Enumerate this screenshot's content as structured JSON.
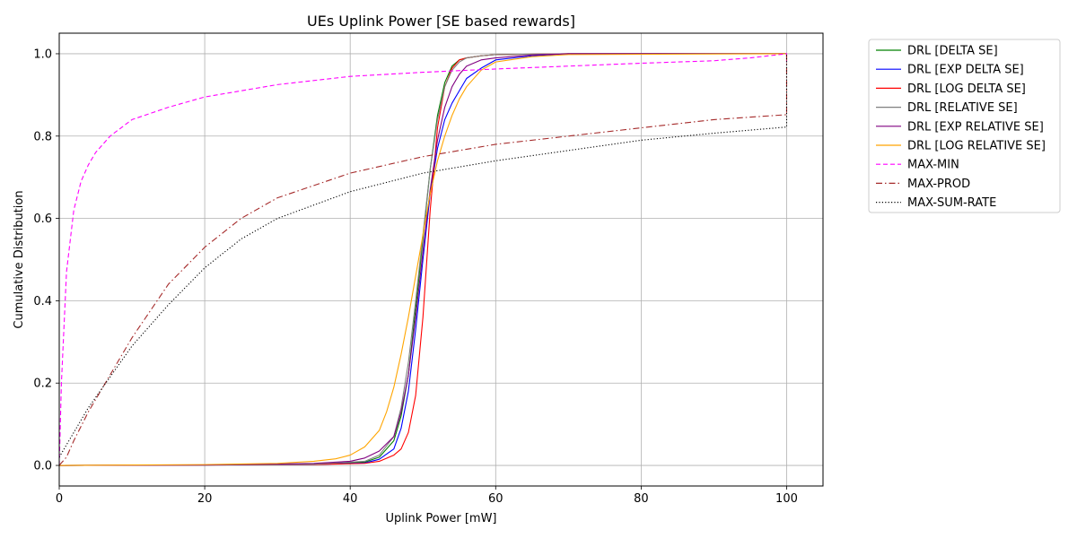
{
  "chart_data": {
    "type": "line",
    "title": "UEs Uplink Power [SE based rewards]",
    "xlabel": "Uplink Power [mW]",
    "ylabel": "Cumulative Distribution",
    "xlim": [
      0,
      105
    ],
    "ylim": [
      -0.05,
      1.05
    ],
    "xticks": [
      0,
      20,
      40,
      60,
      80,
      100
    ],
    "yticks": [
      0.0,
      0.2,
      0.4,
      0.6,
      0.8,
      1.0
    ],
    "xtick_labels": [
      "0",
      "20",
      "40",
      "60",
      "80",
      "100"
    ],
    "ytick_labels": [
      "0.0",
      "0.2",
      "0.4",
      "0.6",
      "0.8",
      "1.0"
    ],
    "grid": true,
    "legend_position": "outside-top-right",
    "series": [
      {
        "name": "DRL [DELTA SE]",
        "color": "#008000",
        "dash": "solid",
        "x": [
          0,
          20,
          35,
          42,
          44,
          46,
          47,
          48,
          49,
          50,
          51,
          52,
          53,
          54,
          55,
          56,
          58,
          60,
          70,
          100
        ],
        "y": [
          0,
          0.001,
          0.003,
          0.008,
          0.02,
          0.06,
          0.12,
          0.22,
          0.38,
          0.55,
          0.72,
          0.85,
          0.93,
          0.97,
          0.985,
          0.99,
          0.995,
          0.998,
          1.0,
          1.0
        ]
      },
      {
        "name": "DRL [EXP DELTA SE]",
        "color": "#0000ff",
        "dash": "solid",
        "x": [
          0,
          20,
          35,
          42,
          44,
          46,
          47,
          48,
          49,
          50,
          51,
          52,
          53,
          54,
          55,
          56,
          58,
          60,
          65,
          70,
          100
        ],
        "y": [
          0,
          0.001,
          0.002,
          0.006,
          0.015,
          0.04,
          0.09,
          0.18,
          0.33,
          0.5,
          0.66,
          0.77,
          0.84,
          0.88,
          0.91,
          0.94,
          0.965,
          0.985,
          0.995,
          1.0,
          1.0
        ]
      },
      {
        "name": "DRL [LOG DELTA SE]",
        "color": "#ff0000",
        "dash": "solid",
        "x": [
          0,
          20,
          35,
          42,
          44,
          46,
          47,
          48,
          49,
          50,
          51,
          52,
          53,
          54,
          55,
          56,
          58,
          60,
          70,
          100
        ],
        "y": [
          0,
          0.001,
          0.002,
          0.005,
          0.01,
          0.025,
          0.04,
          0.08,
          0.17,
          0.36,
          0.62,
          0.82,
          0.92,
          0.965,
          0.985,
          0.99,
          0.995,
          0.998,
          1.0,
          1.0
        ]
      },
      {
        "name": "DRL [RELATIVE SE]",
        "color": "#808080",
        "dash": "solid",
        "x": [
          0,
          20,
          35,
          42,
          44,
          46,
          47,
          48,
          49,
          50,
          51,
          52,
          53,
          54,
          55,
          56,
          58,
          60,
          70,
          100
        ],
        "y": [
          0,
          0.001,
          0.003,
          0.01,
          0.025,
          0.07,
          0.14,
          0.25,
          0.4,
          0.56,
          0.72,
          0.84,
          0.92,
          0.96,
          0.98,
          0.99,
          0.995,
          0.998,
          1.0,
          1.0
        ]
      },
      {
        "name": "DRL [EXP RELATIVE SE]",
        "color": "#800080",
        "dash": "solid",
        "x": [
          0,
          20,
          35,
          40,
          42,
          44,
          46,
          47,
          48,
          49,
          50,
          51,
          52,
          53,
          54,
          55,
          56,
          58,
          60,
          65,
          70,
          100
        ],
        "y": [
          0,
          0.001,
          0.005,
          0.01,
          0.018,
          0.035,
          0.07,
          0.13,
          0.22,
          0.36,
          0.52,
          0.67,
          0.79,
          0.87,
          0.92,
          0.95,
          0.97,
          0.985,
          0.99,
          0.997,
          1.0,
          1.0
        ]
      },
      {
        "name": "DRL [LOG RELATIVE SE]",
        "color": "#ffa500",
        "dash": "solid",
        "x": [
          0,
          20,
          30,
          35,
          38,
          40,
          42,
          44,
          45,
          46,
          47,
          48,
          49,
          50,
          51,
          52,
          53,
          54,
          55,
          56,
          58,
          60,
          65,
          70,
          100
        ],
        "y": [
          0,
          0.002,
          0.005,
          0.01,
          0.016,
          0.025,
          0.045,
          0.085,
          0.13,
          0.19,
          0.27,
          0.36,
          0.46,
          0.56,
          0.66,
          0.74,
          0.8,
          0.85,
          0.89,
          0.92,
          0.96,
          0.98,
          0.993,
          0.998,
          1.0
        ]
      },
      {
        "name": "MAX-MIN",
        "color": "#ff00ff",
        "dash": "5,3",
        "x": [
          0,
          0.3,
          1,
          2,
          3,
          4,
          5,
          7,
          10,
          15,
          20,
          30,
          40,
          50,
          60,
          70,
          80,
          90,
          95,
          100,
          100
        ],
        "y": [
          0,
          0.2,
          0.47,
          0.62,
          0.69,
          0.73,
          0.76,
          0.8,
          0.84,
          0.87,
          0.895,
          0.925,
          0.945,
          0.955,
          0.963,
          0.97,
          0.977,
          0.983,
          0.99,
          1.0,
          0.98
        ]
      },
      {
        "name": "MAX-PROD",
        "color": "#a52a2a",
        "dash": "7,3,1.5,3",
        "x": [
          0,
          1,
          2,
          4,
          6,
          8,
          10,
          15,
          20,
          25,
          30,
          40,
          50,
          60,
          70,
          80,
          90,
          100,
          100
        ],
        "y": [
          0,
          0.02,
          0.06,
          0.13,
          0.19,
          0.25,
          0.31,
          0.44,
          0.53,
          0.6,
          0.65,
          0.71,
          0.75,
          0.78,
          0.8,
          0.82,
          0.84,
          0.852,
          1.0
        ]
      },
      {
        "name": "MAX-SUM-RATE",
        "color": "#000000",
        "dash": "1.2,2.2",
        "x": [
          0,
          1,
          2,
          4,
          6,
          8,
          10,
          15,
          20,
          25,
          30,
          40,
          50,
          60,
          70,
          80,
          90,
          100,
          100
        ],
        "y": [
          0.02,
          0.05,
          0.08,
          0.14,
          0.19,
          0.24,
          0.29,
          0.39,
          0.48,
          0.55,
          0.6,
          0.665,
          0.71,
          0.74,
          0.765,
          0.79,
          0.807,
          0.822,
          1.0
        ]
      }
    ]
  }
}
